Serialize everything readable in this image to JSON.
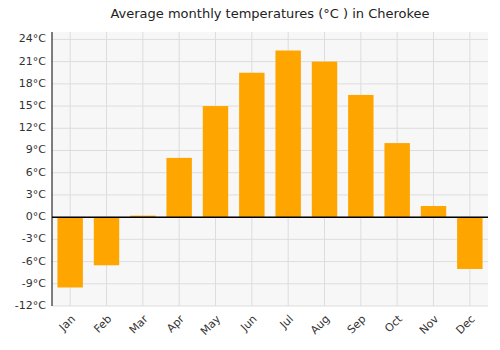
{
  "chart_data": {
    "type": "bar",
    "title": "Average monthly temperatures (°C ) in Cherokee",
    "categories": [
      "Jan",
      "Feb",
      "Mar",
      "Apr",
      "May",
      "Jun",
      "Jul",
      "Aug",
      "Sep",
      "Oct",
      "Nov",
      "Dec"
    ],
    "values": [
      -9.5,
      -6.5,
      0.2,
      8.0,
      15.0,
      19.5,
      22.5,
      21.0,
      16.5,
      10.0,
      1.5,
      -7.0
    ],
    "color": "#FFA500",
    "ylim": [
      -12,
      25
    ],
    "yticks": [
      {
        "value": -12,
        "label": "-12°C"
      },
      {
        "value": -9,
        "label": "-9°C"
      },
      {
        "value": -6,
        "label": "-6°C"
      },
      {
        "value": -3,
        "label": "-3°C"
      },
      {
        "value": 0,
        "label": "0°C"
      },
      {
        "value": 3,
        "label": "3°C"
      },
      {
        "value": 6,
        "label": "6°C"
      },
      {
        "value": 9,
        "label": "9°C"
      },
      {
        "value": 12,
        "label": "12°C"
      },
      {
        "value": 15,
        "label": "15°C"
      },
      {
        "value": 18,
        "label": "18°C"
      },
      {
        "value": 21,
        "label": "21°C"
      },
      {
        "value": 24,
        "label": "24°C"
      }
    ],
    "grid": true
  }
}
